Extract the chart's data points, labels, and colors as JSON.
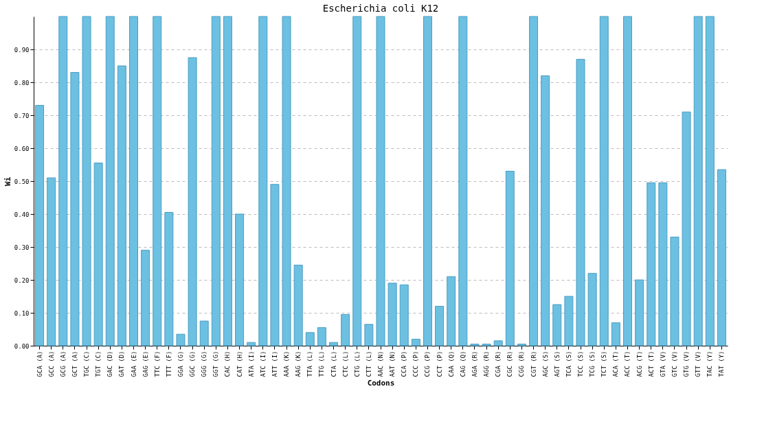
{
  "chart_data": {
    "type": "bar",
    "title": "Escherichia coli K12",
    "xlabel": "Codons",
    "ylabel": "Wi",
    "categories": [
      "GCA (A)",
      "GCC (A)",
      "GCG (A)",
      "GCT (A)",
      "TGC (C)",
      "TGT (C)",
      "GAC (D)",
      "GAT (D)",
      "GAA (E)",
      "GAG (E)",
      "TTC (F)",
      "TTT (F)",
      "GGA (G)",
      "GGC (G)",
      "GGG (G)",
      "GGT (G)",
      "CAC (H)",
      "CAT (H)",
      "ATA (I)",
      "ATC (I)",
      "ATT (I)",
      "AAA (K)",
      "AAG (K)",
      "TTA (L)",
      "TTG (L)",
      "CTA (L)",
      "CTC (L)",
      "CTG (L)",
      "CTT (L)",
      "AAC (N)",
      "AAT (N)",
      "CCA (P)",
      "CCC (P)",
      "CCG (P)",
      "CCT (P)",
      "CAA (Q)",
      "CAG (Q)",
      "AGA (R)",
      "AGG (R)",
      "CGA (R)",
      "CGC (R)",
      "CGG (R)",
      "CGT (R)",
      "AGC (S)",
      "AGT (S)",
      "TCA (S)",
      "TCC (S)",
      "TCG (S)",
      "TCT (S)",
      "ACA (T)",
      "ACC (T)",
      "ACG (T)",
      "ACT (T)",
      "GTA (V)",
      "GTC (V)",
      "GTG (V)",
      "GTT (V)",
      "TAC (Y)",
      "TAT (Y)"
    ],
    "values": [
      0.73,
      0.51,
      1,
      0.83,
      1,
      0.555,
      1,
      0.85,
      1,
      0.29,
      1,
      0.405,
      0.035,
      0.875,
      0.075,
      1,
      1,
      0.4,
      0.01,
      1,
      0.49,
      1,
      0.245,
      0.04,
      0.055,
      0.01,
      0.095,
      1,
      0.065,
      1,
      0.19,
      0.185,
      0.02,
      1,
      0.12,
      0.21,
      1,
      0.005,
      0.005,
      0.015,
      0.53,
      0.005,
      1,
      0.82,
      0.125,
      0.15,
      0.87,
      0.22,
      1,
      0.07,
      1,
      0.2,
      0.495,
      0.495,
      0.33,
      0.71,
      1,
      1,
      0.535
    ],
    "color": "#6cc0e2",
    "ylim": [
      0,
      1
    ],
    "yticks": [
      {
        "value": 0,
        "label": "0.00"
      },
      {
        "value": 0.1,
        "label": "0.10"
      },
      {
        "value": 0.2,
        "label": "0.20"
      },
      {
        "value": 0.3,
        "label": "0.30"
      },
      {
        "value": 0.4,
        "label": "0.40"
      },
      {
        "value": 0.5,
        "label": "0.50"
      },
      {
        "value": 0.6,
        "label": "0.60"
      },
      {
        "value": 0.7,
        "label": "0.70"
      },
      {
        "value": 0.8,
        "label": "0.80"
      },
      {
        "value": 0.9,
        "label": "0.90"
      }
    ],
    "grid": "y"
  }
}
